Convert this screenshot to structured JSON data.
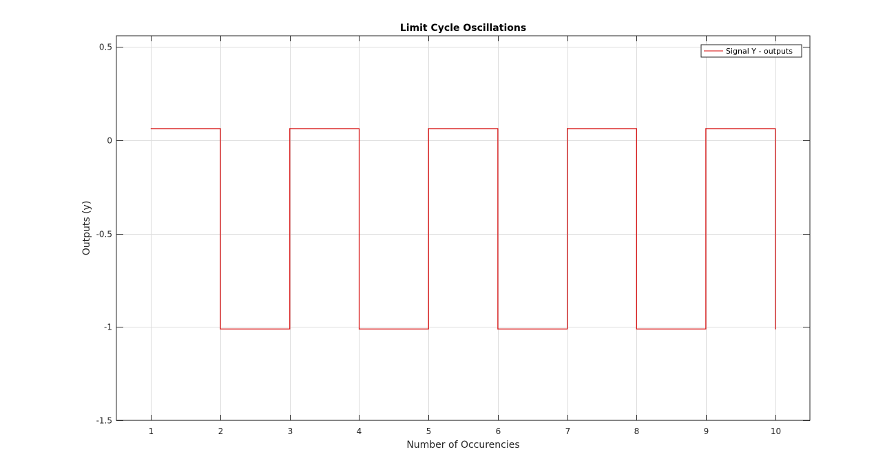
{
  "chart_data": {
    "type": "line",
    "step": true,
    "title": "Limit Cycle Oscillations",
    "xlabel": "Number of Occurencies",
    "ylabel": "Outputs (y)",
    "xlim": [
      0.5,
      10.5
    ],
    "ylim": [
      -1.5,
      0.56
    ],
    "xticks": [
      1,
      2,
      3,
      4,
      5,
      6,
      7,
      8,
      9,
      10
    ],
    "xtick_labels": [
      "1",
      "2",
      "3",
      "4",
      "5",
      "6",
      "7",
      "8",
      "9",
      "10"
    ],
    "yticks": [
      0.5,
      0,
      -0.5,
      -1,
      -1.5
    ],
    "ytick_labels": [
      "0.5",
      "0",
      "-0.5",
      "-1",
      "-1.5"
    ],
    "grid": true,
    "legend_position": "top-right",
    "series": [
      {
        "name": "Signal Y - outputs",
        "color": "#d40000",
        "x": [
          1,
          2,
          3,
          4,
          5,
          6,
          7,
          8,
          9,
          10
        ],
        "y": [
          0.0625,
          -1.0107,
          0.0625,
          -1.0107,
          0.0625,
          -1.0107,
          0.0625,
          -1.0107,
          0.0625,
          -1.0107
        ]
      }
    ]
  }
}
